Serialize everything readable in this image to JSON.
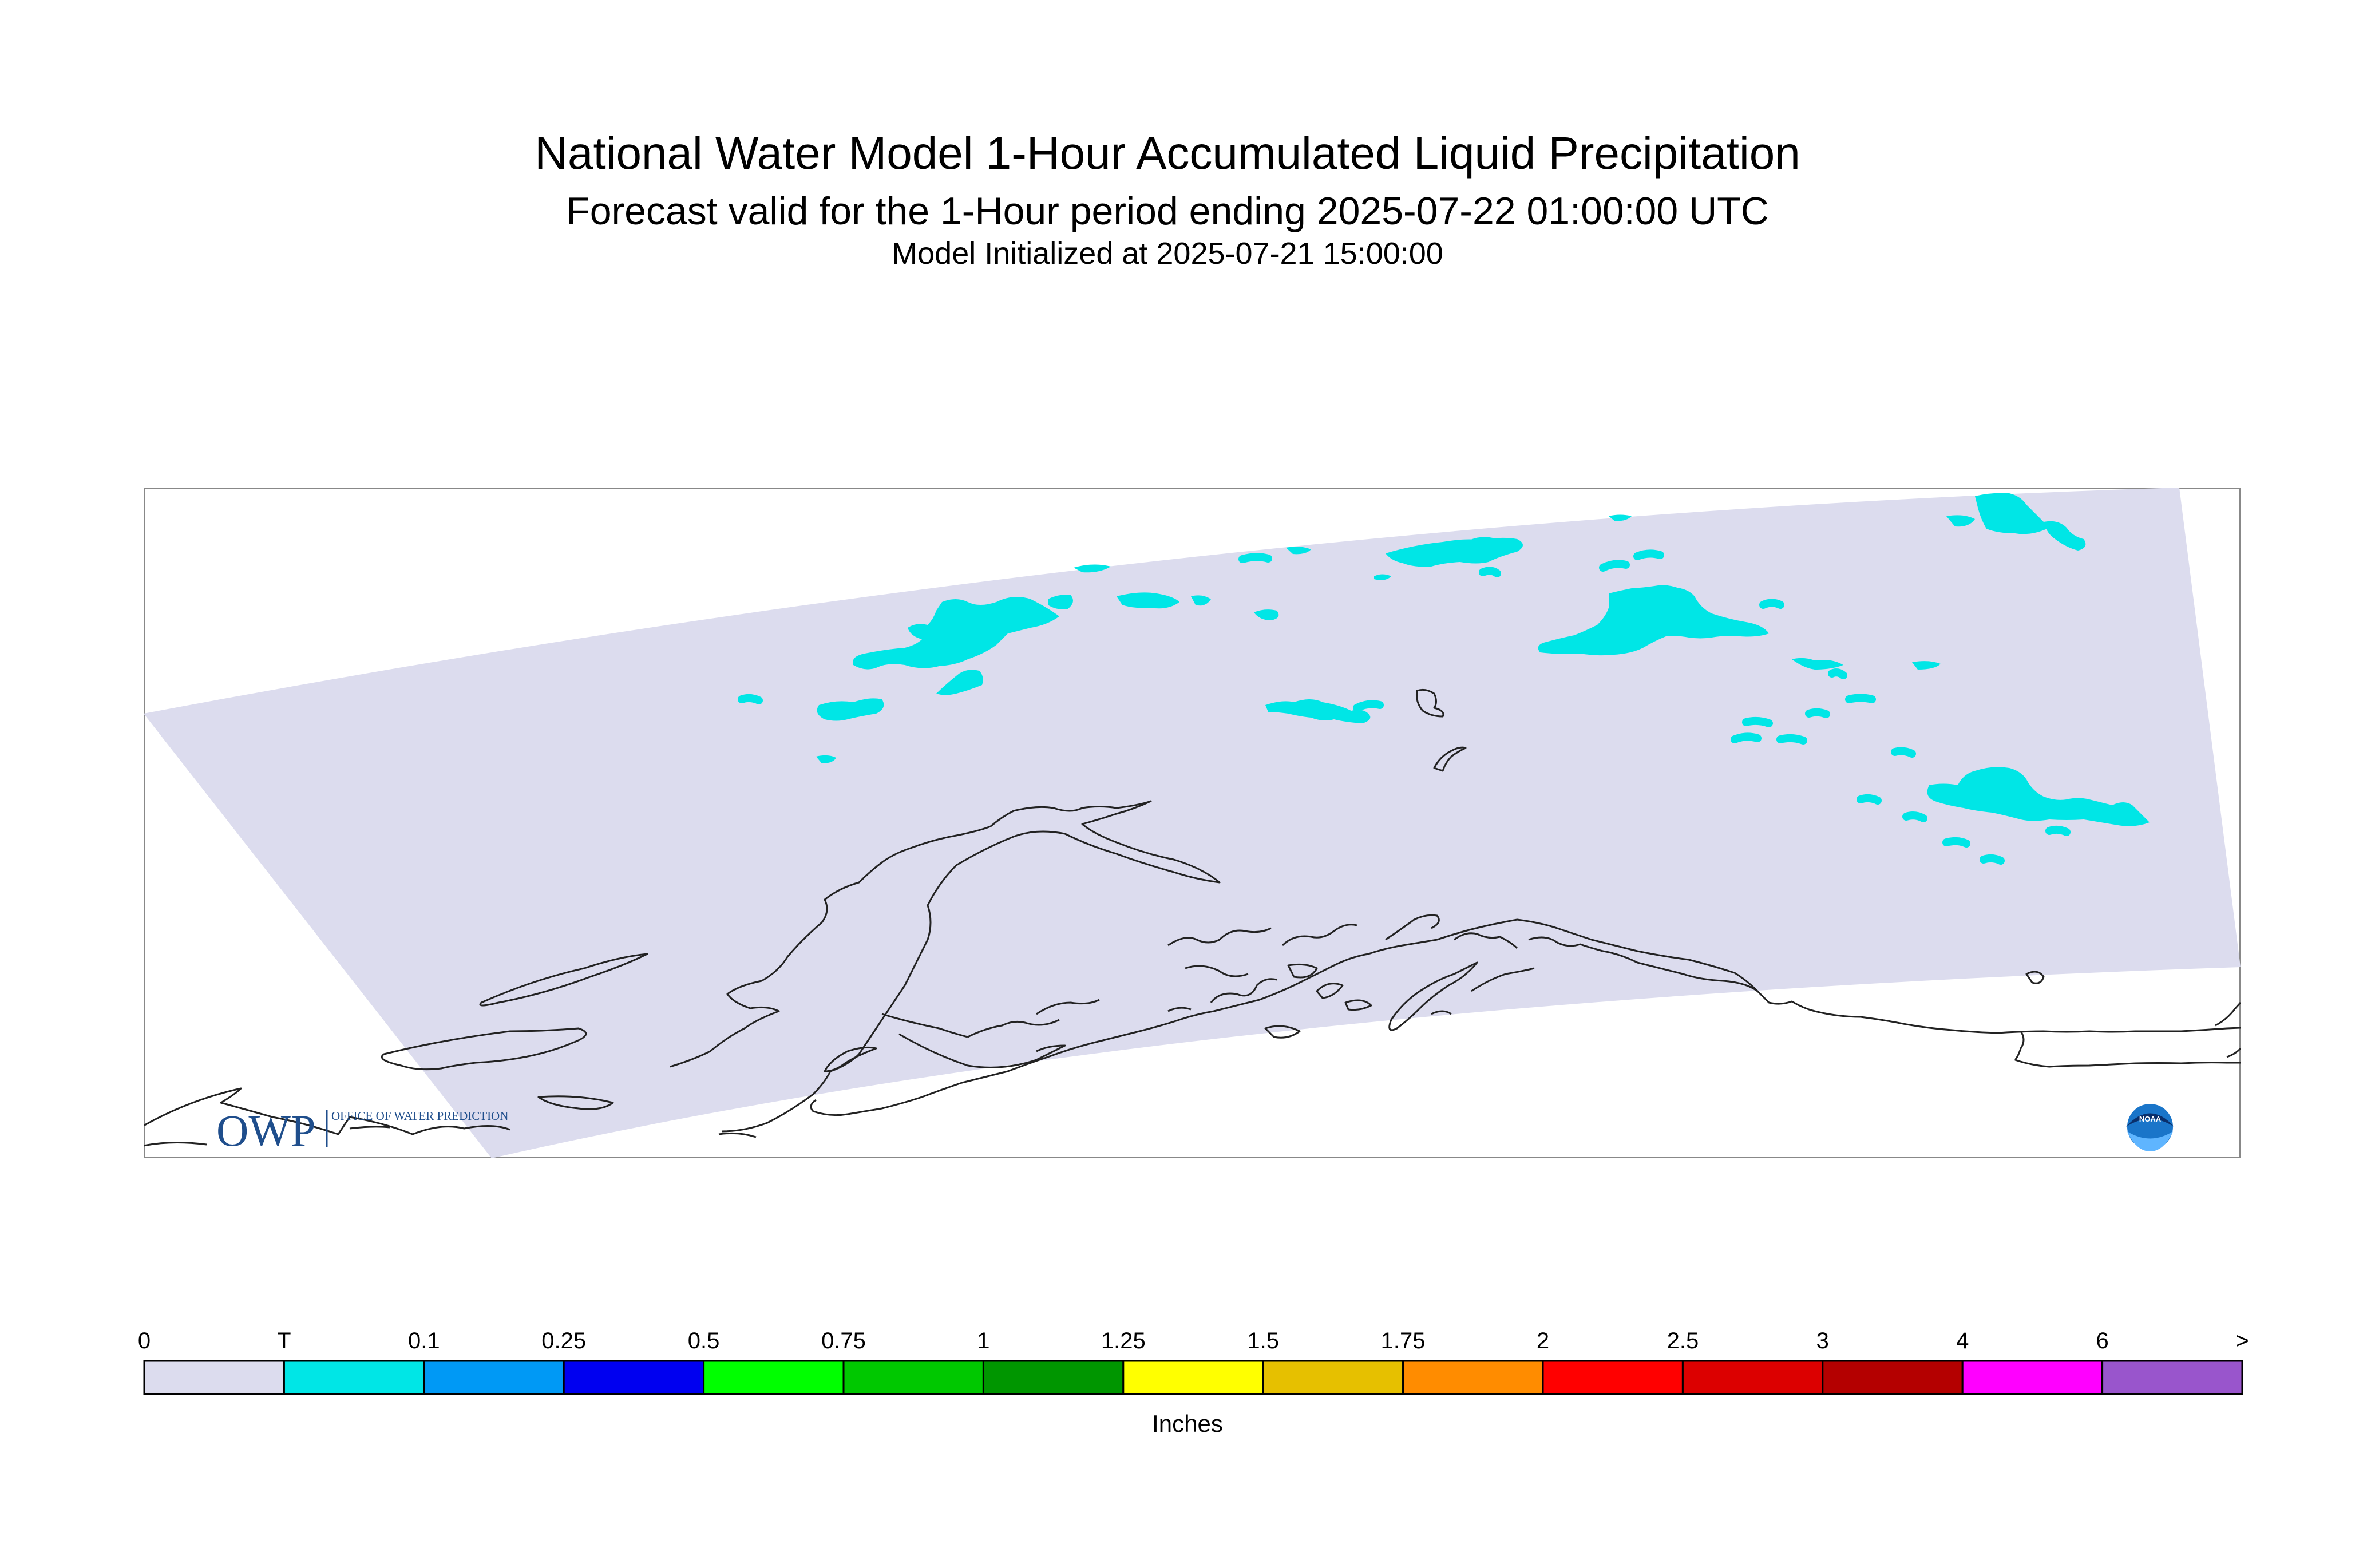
{
  "title": {
    "line1": "National Water Model 1-Hour Accumulated Liquid Precipitation",
    "line2": "Forecast valid for the 1-Hour period ending 2025-07-22 01:00:00 UTC",
    "line3": "Model Initialized at 2025-07-21 15:00:00"
  },
  "map": {
    "region": "Alaska",
    "domain_fill_color": "#dcdcee",
    "precip_fill_color": "#00e6e6",
    "coastline_color": "#222222",
    "logos": {
      "owp": {
        "letters": "OWP",
        "text": "OFFICE OF WATER PREDICTION",
        "icon": "owp-logo-icon"
      },
      "noaa": {
        "text": "NOAA",
        "icon": "noaa-logo-icon"
      }
    }
  },
  "legend": {
    "units": "Inches",
    "labels": [
      "0",
      "T",
      "0.1",
      "0.25",
      "0.5",
      "0.75",
      "1",
      "1.25",
      "1.5",
      "1.75",
      "2",
      "2.5",
      "3",
      "4",
      "6",
      ">"
    ],
    "colors": [
      "#dcdcee",
      "#00e6e6",
      "#0099f5",
      "#0000f0",
      "#00ff00",
      "#00c800",
      "#009600",
      "#ffff00",
      "#e6c000",
      "#ff8c00",
      "#ff0000",
      "#dc0000",
      "#b40000",
      "#ff00ff",
      "#9955cc"
    ]
  }
}
